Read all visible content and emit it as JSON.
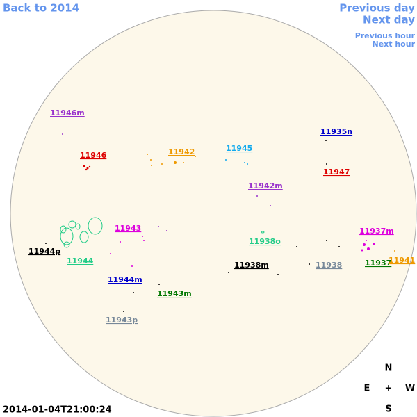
{
  "navigation": {
    "back": "Back to 2014",
    "previous_day": "Previous day",
    "next_day": "Next day",
    "previous_hour": "Previous hour",
    "next_hour": "Next hour"
  },
  "regions": [
    {
      "label": "11946m",
      "color": "#9933cc"
    },
    {
      "label": "11946",
      "color": "#dd0000"
    },
    {
      "label": "11942",
      "color": "#ee9900"
    },
    {
      "label": "11945",
      "color": "#11aaee"
    },
    {
      "label": "11935n",
      "color": "#0000cc"
    },
    {
      "label": "11947",
      "color": "#dd0000"
    },
    {
      "label": "11942m",
      "color": "#9933cc"
    },
    {
      "label": "11943",
      "color": "#dd00dd"
    },
    {
      "label": "11937m",
      "color": "#dd00dd"
    },
    {
      "label": "11938o",
      "color": "#22cc88"
    },
    {
      "label": "11944p",
      "color": "#000000"
    },
    {
      "label": "11944",
      "color": "#22cc88"
    },
    {
      "label": "11938m",
      "color": "#000000"
    },
    {
      "label": "11938",
      "color": "#778899"
    },
    {
      "label": "11937",
      "color": "#007700"
    },
    {
      "label": "11941",
      "color": "#ee9900"
    },
    {
      "label": "11944m",
      "color": "#0000cc"
    },
    {
      "label": "11943m",
      "color": "#007700"
    },
    {
      "label": "11943p",
      "color": "#778899"
    }
  ],
  "compass": {
    "north": "N",
    "east": "E",
    "center": "+",
    "west": "W",
    "south": "S"
  },
  "timestamp": "2014-01-04T21:00:24"
}
